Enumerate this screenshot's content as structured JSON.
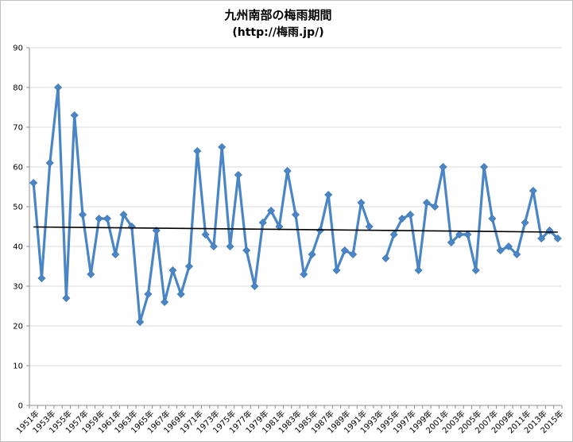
{
  "chart_data": {
    "type": "line",
    "title": "九州南部の梅雨期間",
    "subtitle": "(http://梅雨.jp/)",
    "xlabel": "",
    "ylabel": "",
    "ylim": [
      0,
      90
    ],
    "yticks": [
      0,
      10,
      20,
      30,
      40,
      50,
      60,
      70,
      80,
      90
    ],
    "grid": true,
    "legend": "none",
    "x_tick_labels": [
      "1951年",
      "1953年",
      "1955年",
      "1957年",
      "1959年",
      "1961年",
      "1963年",
      "1965年",
      "1967年",
      "1969年",
      "1971年",
      "1973年",
      "1975年",
      "1977年",
      "1979年",
      "1981年",
      "1983年",
      "1985年",
      "1987年",
      "1989年",
      "1991年",
      "1993年",
      "1995年",
      "1997年",
      "1999年",
      "2001年",
      "2003年",
      "2005年",
      "2007年",
      "2009年",
      "2011年",
      "2013年",
      "2015年"
    ],
    "x": [
      1951,
      1952,
      1953,
      1954,
      1955,
      1956,
      1957,
      1958,
      1959,
      1960,
      1961,
      1962,
      1963,
      1964,
      1965,
      1966,
      1967,
      1968,
      1969,
      1970,
      1971,
      1972,
      1973,
      1974,
      1975,
      1976,
      1977,
      1978,
      1979,
      1980,
      1981,
      1982,
      1983,
      1984,
      1985,
      1986,
      1987,
      1988,
      1989,
      1990,
      1991,
      1992,
      1993,
      1994,
      1995,
      1996,
      1997,
      1998,
      1999,
      2000,
      2001,
      2002,
      2003,
      2004,
      2005,
      2006,
      2007,
      2008,
      2009,
      2010,
      2011,
      2012,
      2013,
      2014,
      2015
    ],
    "series": [
      {
        "values": [
          56,
          32,
          61,
          80,
          27,
          73,
          48,
          33,
          47,
          47,
          38,
          48,
          45,
          21,
          28,
          44,
          26,
          34,
          28,
          35,
          64,
          43,
          40,
          65,
          40,
          58,
          39,
          30,
          46,
          49,
          45,
          59,
          48,
          33,
          38,
          44,
          53,
          34,
          39,
          38,
          51,
          45,
          null,
          37,
          43,
          47,
          48,
          34,
          51,
          50,
          60,
          41,
          43,
          43,
          34,
          60,
          47,
          39,
          40,
          38,
          46,
          54,
          42,
          44,
          42
        ],
        "color": "#4a86c5"
      }
    ],
    "trendline": {
      "type": "linear",
      "start": 44.9,
      "end": 43.6,
      "color": "#000000"
    }
  }
}
